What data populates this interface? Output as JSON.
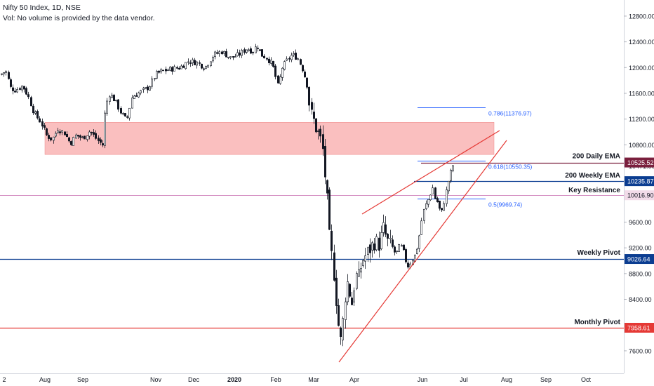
{
  "header": {
    "title": "Nifty 50 Index, 1D, NSE",
    "volume_note": "Vol: No volume is provided by the data vendor."
  },
  "chart_data": {
    "type": "candlestick",
    "ylim": [
      7250,
      13050
    ],
    "y_ticks": [
      {
        "value": 12800,
        "label": "12800.00"
      },
      {
        "value": 12400,
        "label": "12400.00"
      },
      {
        "value": 12000,
        "label": "12000.00"
      },
      {
        "value": 11600,
        "label": "11600.00"
      },
      {
        "value": 11200,
        "label": "11200.00"
      },
      {
        "value": 10800,
        "label": "10800.00"
      },
      {
        "value": 10471,
        "label": "10471.00"
      },
      {
        "value": 9600,
        "label": "9600.00"
      },
      {
        "value": 9200,
        "label": "9200.00"
      },
      {
        "value": 8800,
        "label": "8800.00"
      },
      {
        "value": 8400,
        "label": "8400.00"
      },
      {
        "value": 7600,
        "label": "7600.00"
      }
    ],
    "x_ticks": [
      {
        "label": "2",
        "bold": false
      },
      {
        "label": "Aug",
        "bold": false
      },
      {
        "label": "Sep",
        "bold": false
      },
      {
        "label": "Nov",
        "bold": false
      },
      {
        "label": "Dec",
        "bold": false
      },
      {
        "label": "2020",
        "bold": true
      },
      {
        "label": "Feb",
        "bold": false
      },
      {
        "label": "Mar",
        "bold": false
      },
      {
        "label": "Apr",
        "bold": false
      },
      {
        "label": "Jun",
        "bold": false
      },
      {
        "label": "Jul",
        "bold": false
      },
      {
        "label": "Aug",
        "bold": false
      },
      {
        "label": "Sep",
        "bold": false
      },
      {
        "label": "Oct",
        "bold": false
      }
    ],
    "price_path": [
      [
        0,
        11890
      ],
      [
        8,
        11950
      ],
      [
        15,
        11680
      ],
      [
        22,
        11650
      ],
      [
        32,
        11720
      ],
      [
        40,
        11550
      ],
      [
        48,
        11300
      ],
      [
        58,
        11150
      ],
      [
        66,
        10950
      ],
      [
        74,
        10880
      ],
      [
        82,
        11050
      ],
      [
        92,
        10980
      ],
      [
        100,
        10820
      ],
      [
        108,
        10950
      ],
      [
        118,
        10900
      ],
      [
        128,
        11020
      ],
      [
        138,
        10880
      ],
      [
        146,
        10800
      ],
      [
        150,
        11400
      ],
      [
        156,
        11600
      ],
      [
        164,
        11480
      ],
      [
        172,
        11300
      ],
      [
        180,
        11180
      ],
      [
        188,
        11550
      ],
      [
        200,
        11620
      ],
      [
        212,
        11700
      ],
      [
        222,
        11900
      ],
      [
        232,
        11950
      ],
      [
        244,
        11980
      ],
      [
        256,
        12000
      ],
      [
        268,
        12100
      ],
      [
        280,
        12080
      ],
      [
        292,
        12000
      ],
      [
        304,
        12200
      ],
      [
        316,
        12250
      ],
      [
        328,
        12150
      ],
      [
        340,
        12200
      ],
      [
        352,
        12300
      ],
      [
        360,
        12250
      ],
      [
        366,
        12350
      ],
      [
        372,
        12200
      ],
      [
        380,
        12150
      ],
      [
        388,
        12050
      ],
      [
        396,
        11700
      ],
      [
        402,
        12000
      ],
      [
        408,
        12100
      ],
      [
        416,
        12200
      ],
      [
        424,
        12150
      ],
      [
        432,
        11950
      ],
      [
        438,
        11700
      ],
      [
        442,
        11300
      ],
      [
        446,
        11200
      ],
      [
        452,
        11000
      ],
      [
        456,
        10900
      ],
      [
        460,
        10700
      ],
      [
        463,
        10300
      ],
      [
        467,
        9800
      ],
      [
        470,
        9200
      ],
      [
        474,
        9000
      ],
      [
        478,
        8500
      ],
      [
        482,
        8000
      ],
      [
        486,
        7700
      ],
      [
        490,
        8300
      ],
      [
        494,
        8700
      ],
      [
        498,
        8500
      ],
      [
        502,
        8300
      ],
      [
        506,
        8800
      ],
      [
        510,
        8700
      ],
      [
        516,
        9000
      ],
      [
        522,
        9100
      ],
      [
        528,
        9200
      ],
      [
        534,
        9300
      ],
      [
        540,
        9250
      ],
      [
        546,
        9500
      ],
      [
        552,
        9300
      ],
      [
        558,
        9200
      ],
      [
        564,
        9100
      ],
      [
        570,
        9250
      ],
      [
        576,
        9100
      ],
      [
        580,
        8900
      ],
      [
        586,
        9000
      ],
      [
        592,
        9100
      ],
      [
        596,
        9300
      ],
      [
        600,
        9600
      ],
      [
        604,
        9800
      ],
      [
        608,
        9900
      ],
      [
        612,
        10000
      ],
      [
        616,
        10150
      ],
      [
        620,
        9950
      ],
      [
        624,
        9900
      ],
      [
        628,
        9700
      ],
      [
        632,
        9900
      ],
      [
        636,
        10100
      ],
      [
        640,
        10300
      ],
      [
        644,
        10450
      ],
      [
        648,
        10550
      ]
    ],
    "levels": [
      {
        "name": "Key Resistance",
        "value": 10016.9,
        "value_label": "10016.90",
        "color": "#d48fc2",
        "badge_color": "#f2dbe9",
        "badge_text_color": "#131722"
      },
      {
        "name": "200 Weekly EMA",
        "value": 10235.87,
        "value_label": "10235.87",
        "color": "#0b3d91",
        "badge_color": "#0b3d91",
        "badge_text_color": "#ffffff"
      },
      {
        "name": "200 Daily EMA",
        "value": 10525.52,
        "value_label": "10525.52",
        "color": "#7a1f3d",
        "badge_color": "#7a1f3d",
        "badge_text_color": "#ffffff"
      },
      {
        "name": "Weekly Pivot",
        "value": 9026.64,
        "value_label": "9026.64",
        "color": "#0b3d91",
        "badge_color": "#0b3d91",
        "badge_text_color": "#ffffff"
      },
      {
        "name": "Monthly Pivot",
        "value": 7958.61,
        "value_label": "7958.61",
        "color": "#e53935",
        "badge_color": "#e53935",
        "badge_text_color": "#ffffff"
      }
    ],
    "fib_levels": [
      {
        "label": "0.786(11376.97)",
        "value": 11376.97
      },
      {
        "label": "0.618(10550.35)",
        "value": 10550.35
      },
      {
        "label": "0.5(9969.74)",
        "value": 9969.74
      }
    ],
    "zone": {
      "low": 10650,
      "high": 11150,
      "color": "#f9b4b4"
    },
    "colors": {
      "fib": "#2962ff",
      "trendline": "#e53935",
      "candle": "#131722",
      "axis_text": "#131722"
    }
  }
}
